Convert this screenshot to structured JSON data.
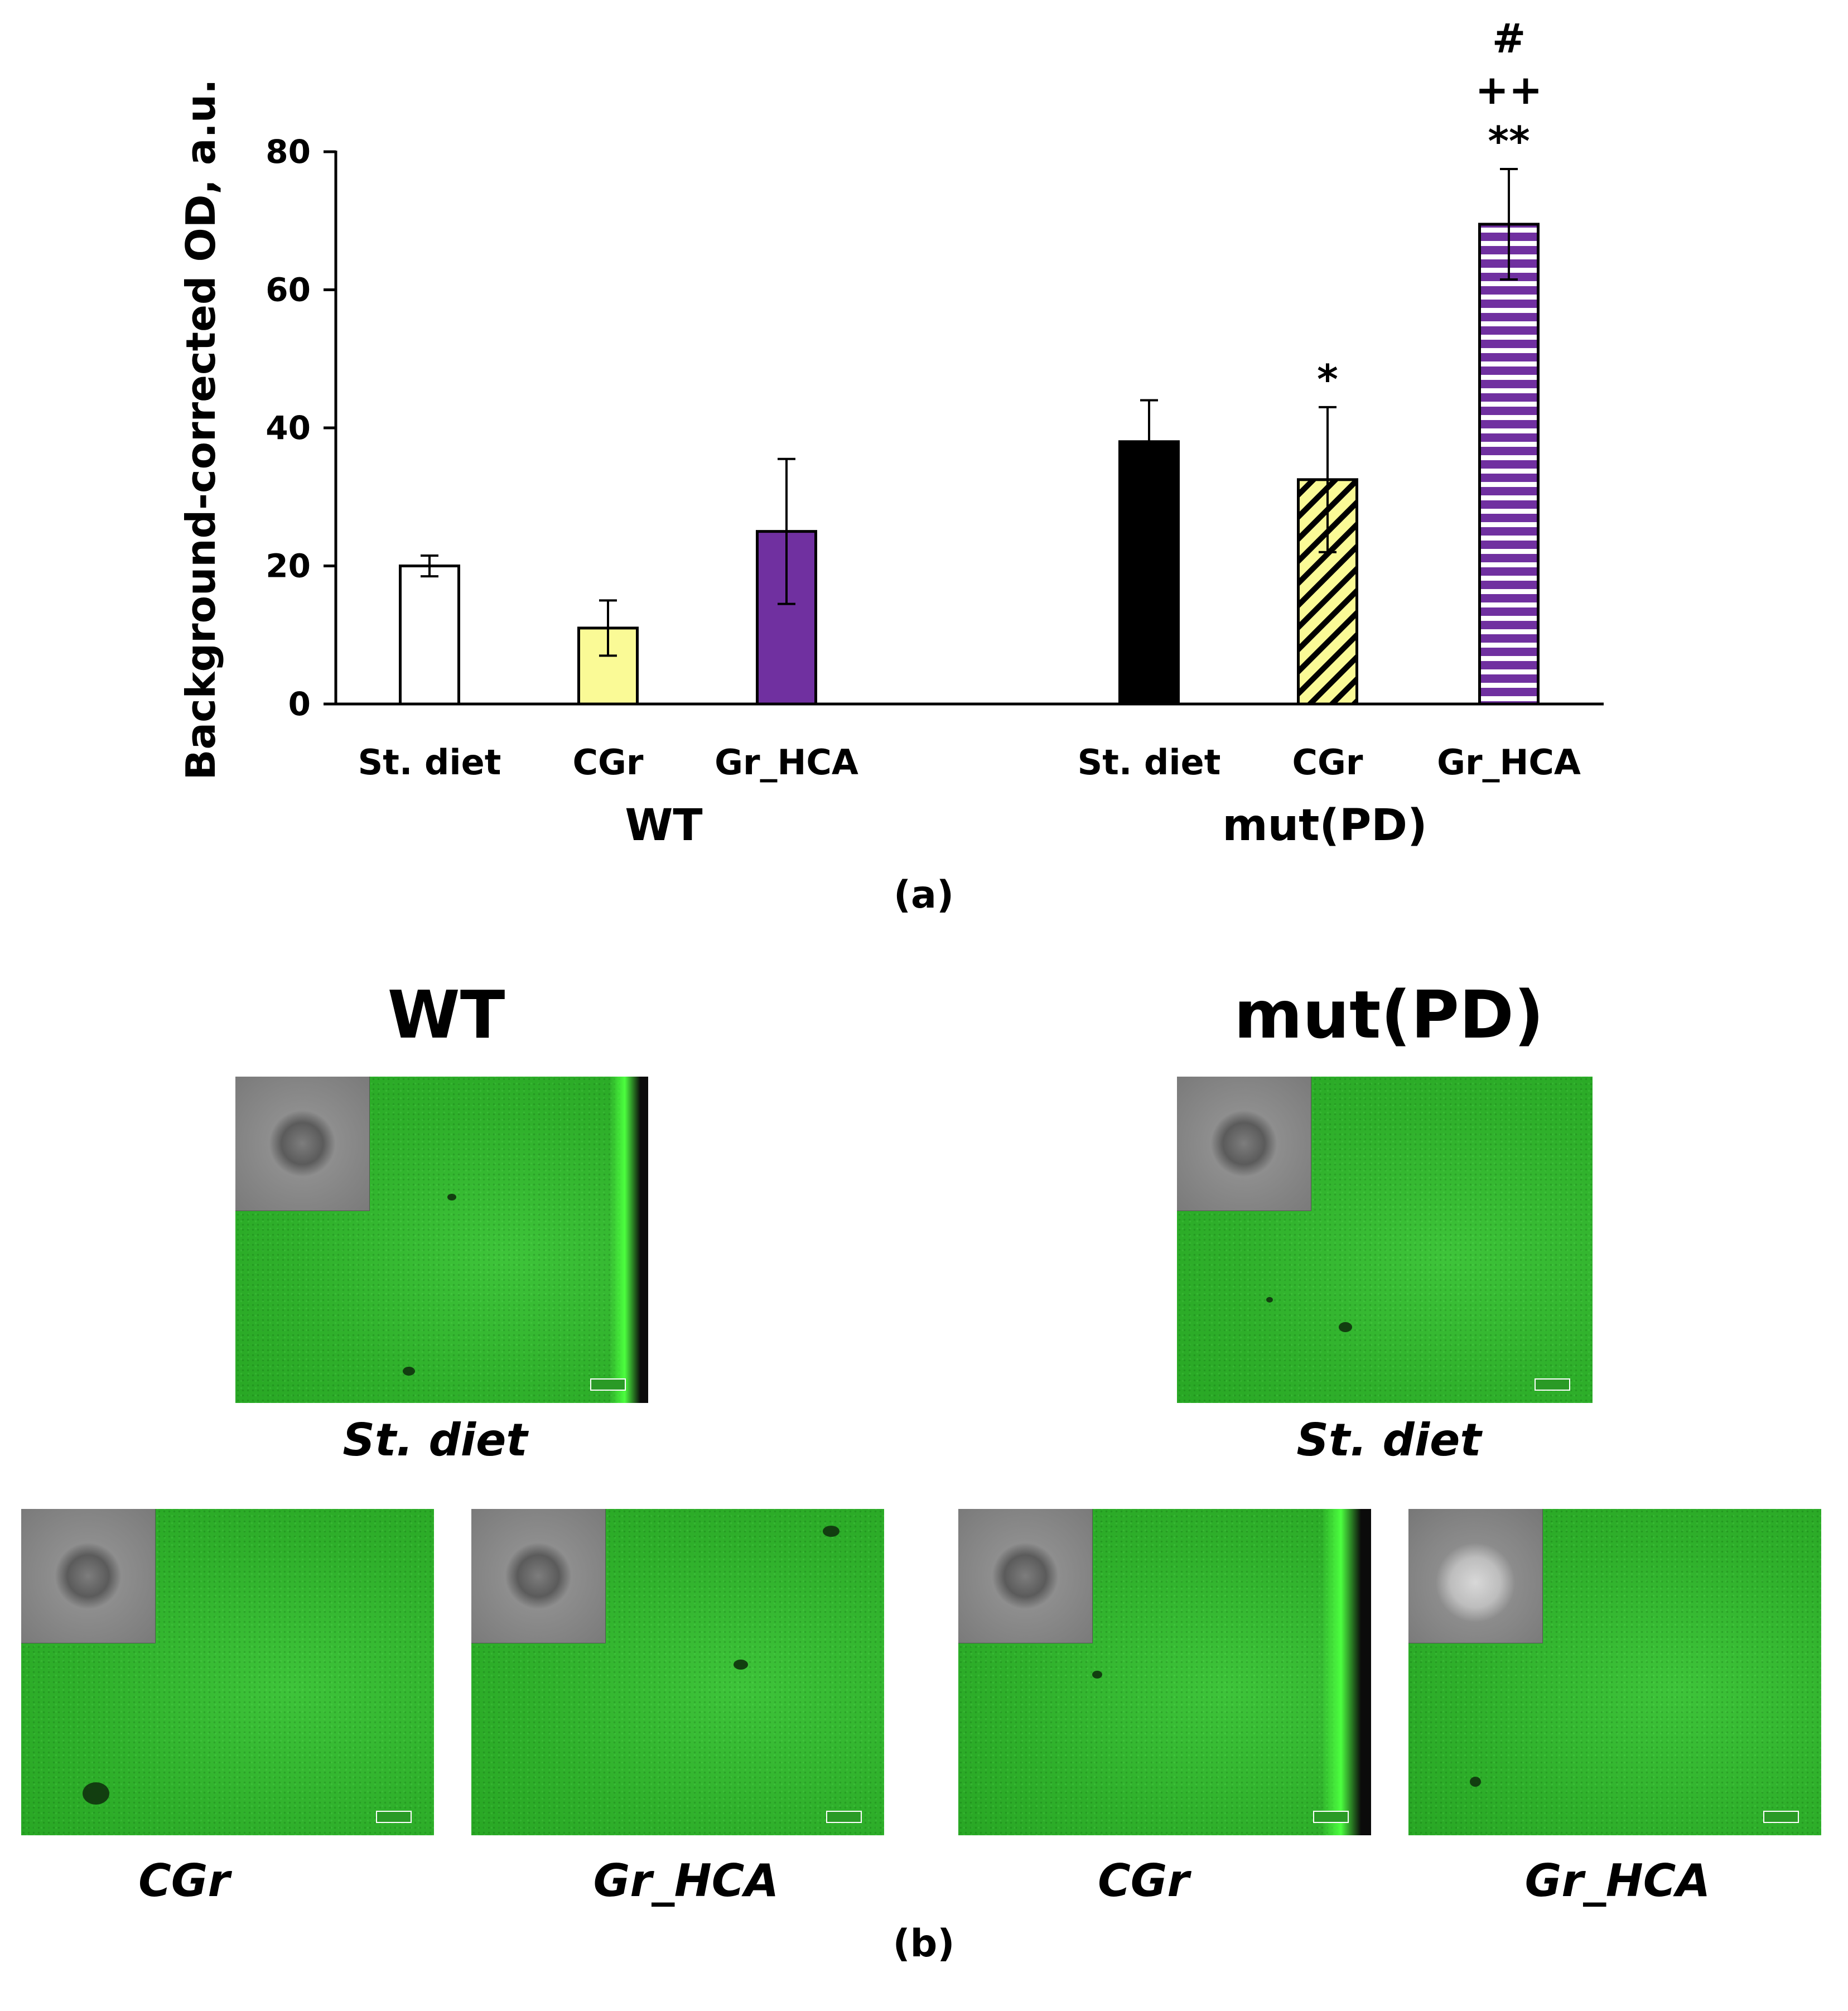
{
  "chart_data": {
    "type": "bar",
    "ylabel": "Background-corrected OD, a.u.",
    "ylim": [
      0,
      80
    ],
    "yticks": [
      0,
      20,
      40,
      60,
      80
    ],
    "groups": [
      {
        "name": "WT",
        "bars": [
          {
            "label": "St. diet",
            "value": 20,
            "error": 1.5,
            "fill": "#ffffff",
            "pattern": "solid",
            "annotation": ""
          },
          {
            "label": "CGr",
            "value": 11,
            "error": 4,
            "fill": "#fafa96",
            "pattern": "solid",
            "annotation": ""
          },
          {
            "label": "Gr_HCA",
            "value": 25,
            "error": 10.5,
            "fill": "#7030a0",
            "pattern": "solid",
            "annotation": ""
          }
        ]
      },
      {
        "name": "mut(PD)",
        "bars": [
          {
            "label": "St. diet",
            "value": 38,
            "error": 6,
            "fill": "#000000",
            "pattern": "solid",
            "annotation": ""
          },
          {
            "label": "CGr",
            "value": 32.5,
            "error": 10.5,
            "fill": "#fafa96",
            "pattern": "diagonal",
            "annotation": "*"
          },
          {
            "label": "Gr_HCA",
            "value": 69.5,
            "error": 8,
            "fill": "#7030a0",
            "pattern": "horizontal",
            "annotation": "**\n++\n#"
          }
        ]
      }
    ]
  },
  "labels": {
    "panel_a": "(a)",
    "panel_b": "(b)",
    "wt_title": "WT",
    "mut_title": "mut(PD)"
  },
  "micrographs": [
    {
      "caption": "St. diet",
      "group": "WT"
    },
    {
      "caption": "St. diet",
      "group": "mut(PD)"
    },
    {
      "caption": "CGr",
      "group": "WT"
    },
    {
      "caption": "Gr_HCA",
      "group": "WT"
    },
    {
      "caption": "CGr",
      "group": "mut(PD)"
    },
    {
      "caption": "Gr_HCA",
      "group": "mut(PD)"
    }
  ]
}
